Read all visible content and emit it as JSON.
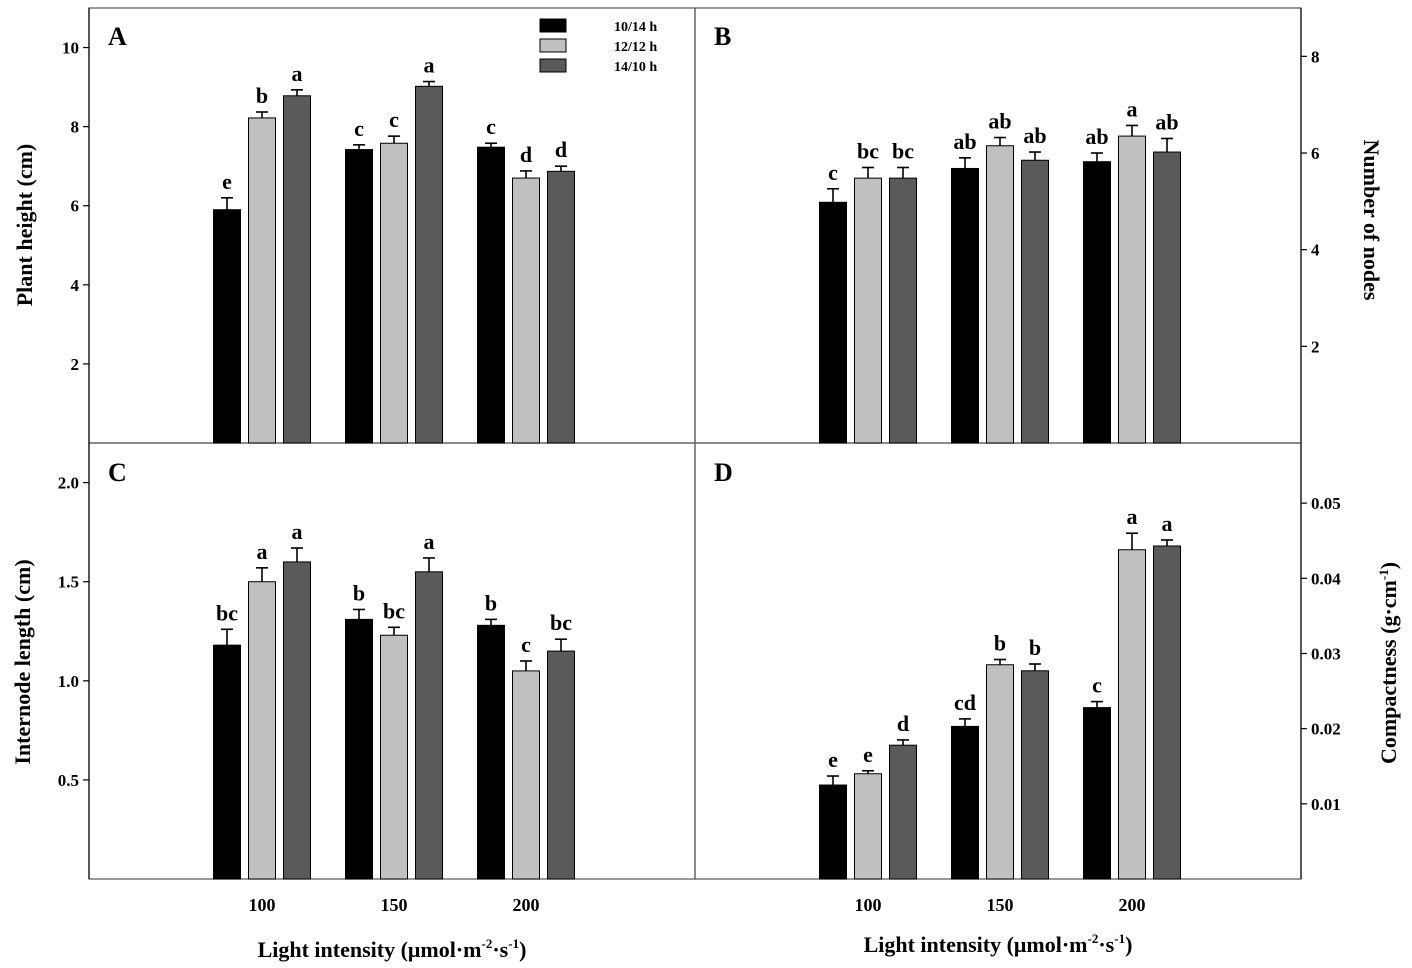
{
  "legend": [
    {
      "label": "10/14 h",
      "color": "#000000"
    },
    {
      "label": "12/12 h",
      "color": "#c0c0c0"
    },
    {
      "label": "14/10 h",
      "color": "#5a5a5a"
    }
  ],
  "x_axis_label_parts": {
    "prefix": "Light intensity (μmol·m",
    "sup1": "-2",
    "mid": "·s",
    "sup2": "-1",
    "suffix": ")"
  },
  "chart_data": [
    {
      "panel": "A",
      "type": "bar",
      "categories": [
        "100",
        "150",
        "200"
      ],
      "ylabel": "Plant height (cm)",
      "ylim": [
        0,
        11
      ],
      "yticks": [
        "2",
        "4",
        "6",
        "8",
        "10"
      ],
      "y_side": "left",
      "series": [
        {
          "name": "10/14 h",
          "values": [
            5.9,
            7.42,
            7.48
          ],
          "errors": [
            0.3,
            0.12,
            0.1
          ],
          "letters": [
            "e",
            "c",
            "c"
          ]
        },
        {
          "name": "12/12 h",
          "values": [
            8.22,
            7.58,
            6.7
          ],
          "errors": [
            0.15,
            0.18,
            0.18
          ],
          "letters": [
            "b",
            "c",
            "d"
          ]
        },
        {
          "name": "14/10 h",
          "values": [
            8.78,
            9.02,
            6.87
          ],
          "errors": [
            0.15,
            0.12,
            0.13
          ],
          "letters": [
            "a",
            "a",
            "d"
          ]
        }
      ]
    },
    {
      "panel": "B",
      "type": "bar",
      "categories": [
        "100",
        "150",
        "200"
      ],
      "ylabel": "Number of nodes",
      "ylim": [
        0,
        9
      ],
      "yticks": [
        "2",
        "4",
        "6",
        "8"
      ],
      "y_side": "right",
      "series": [
        {
          "name": "10/14 h",
          "values": [
            4.98,
            5.68,
            5.82
          ],
          "errors": [
            0.28,
            0.22,
            0.18
          ],
          "letters": [
            "c",
            "ab",
            "ab"
          ]
        },
        {
          "name": "12/12 h",
          "values": [
            5.48,
            6.15,
            6.35
          ],
          "errors": [
            0.22,
            0.17,
            0.22
          ],
          "letters": [
            "bc",
            "ab",
            "a"
          ]
        },
        {
          "name": "14/10 h",
          "values": [
            5.48,
            5.85,
            6.02
          ],
          "errors": [
            0.22,
            0.17,
            0.28
          ],
          "letters": [
            "bc",
            "ab",
            "ab"
          ]
        }
      ]
    },
    {
      "panel": "C",
      "type": "bar",
      "categories": [
        "100",
        "150",
        "200"
      ],
      "ylabel": "Internode length (cm)",
      "ylim": [
        0,
        2.2
      ],
      "yticks": [
        "0.5",
        "1.0",
        "1.5",
        "2.0"
      ],
      "y_side": "left",
      "series": [
        {
          "name": "10/14 h",
          "values": [
            1.18,
            1.31,
            1.28
          ],
          "errors": [
            0.08,
            0.05,
            0.03
          ],
          "letters": [
            "bc",
            "b",
            "b"
          ]
        },
        {
          "name": "12/12 h",
          "values": [
            1.5,
            1.23,
            1.05
          ],
          "errors": [
            0.07,
            0.04,
            0.05
          ],
          "letters": [
            "a",
            "bc",
            "c"
          ]
        },
        {
          "name": "14/10 h",
          "values": [
            1.6,
            1.55,
            1.15
          ],
          "errors": [
            0.07,
            0.07,
            0.06
          ],
          "letters": [
            "a",
            "a",
            "bc"
          ]
        }
      ]
    },
    {
      "panel": "D",
      "type": "bar",
      "categories": [
        "100",
        "150",
        "200"
      ],
      "ylabel_main": "Compactness (g·cm",
      "ylabel_sup": "-1",
      "ylabel_end": ")",
      "ylim": [
        0,
        0.058
      ],
      "yticks": [
        "0.01",
        "0.02",
        "0.03",
        "0.04",
        "0.05"
      ],
      "y_side": "right",
      "series": [
        {
          "name": "10/14 h",
          "values": [
            0.0125,
            0.0203,
            0.0228
          ],
          "errors": [
            0.0012,
            0.001,
            0.0008
          ],
          "letters": [
            "e",
            "cd",
            "c"
          ]
        },
        {
          "name": "12/12 h",
          "values": [
            0.014,
            0.0285,
            0.0438
          ],
          "errors": [
            0.0004,
            0.0007,
            0.0022
          ],
          "letters": [
            "e",
            "b",
            "a"
          ]
        },
        {
          "name": "14/10 h",
          "values": [
            0.0178,
            0.0277,
            0.0443
          ],
          "errors": [
            0.0007,
            0.0009,
            0.0008
          ],
          "letters": [
            "d",
            "b",
            "a"
          ]
        }
      ]
    }
  ]
}
